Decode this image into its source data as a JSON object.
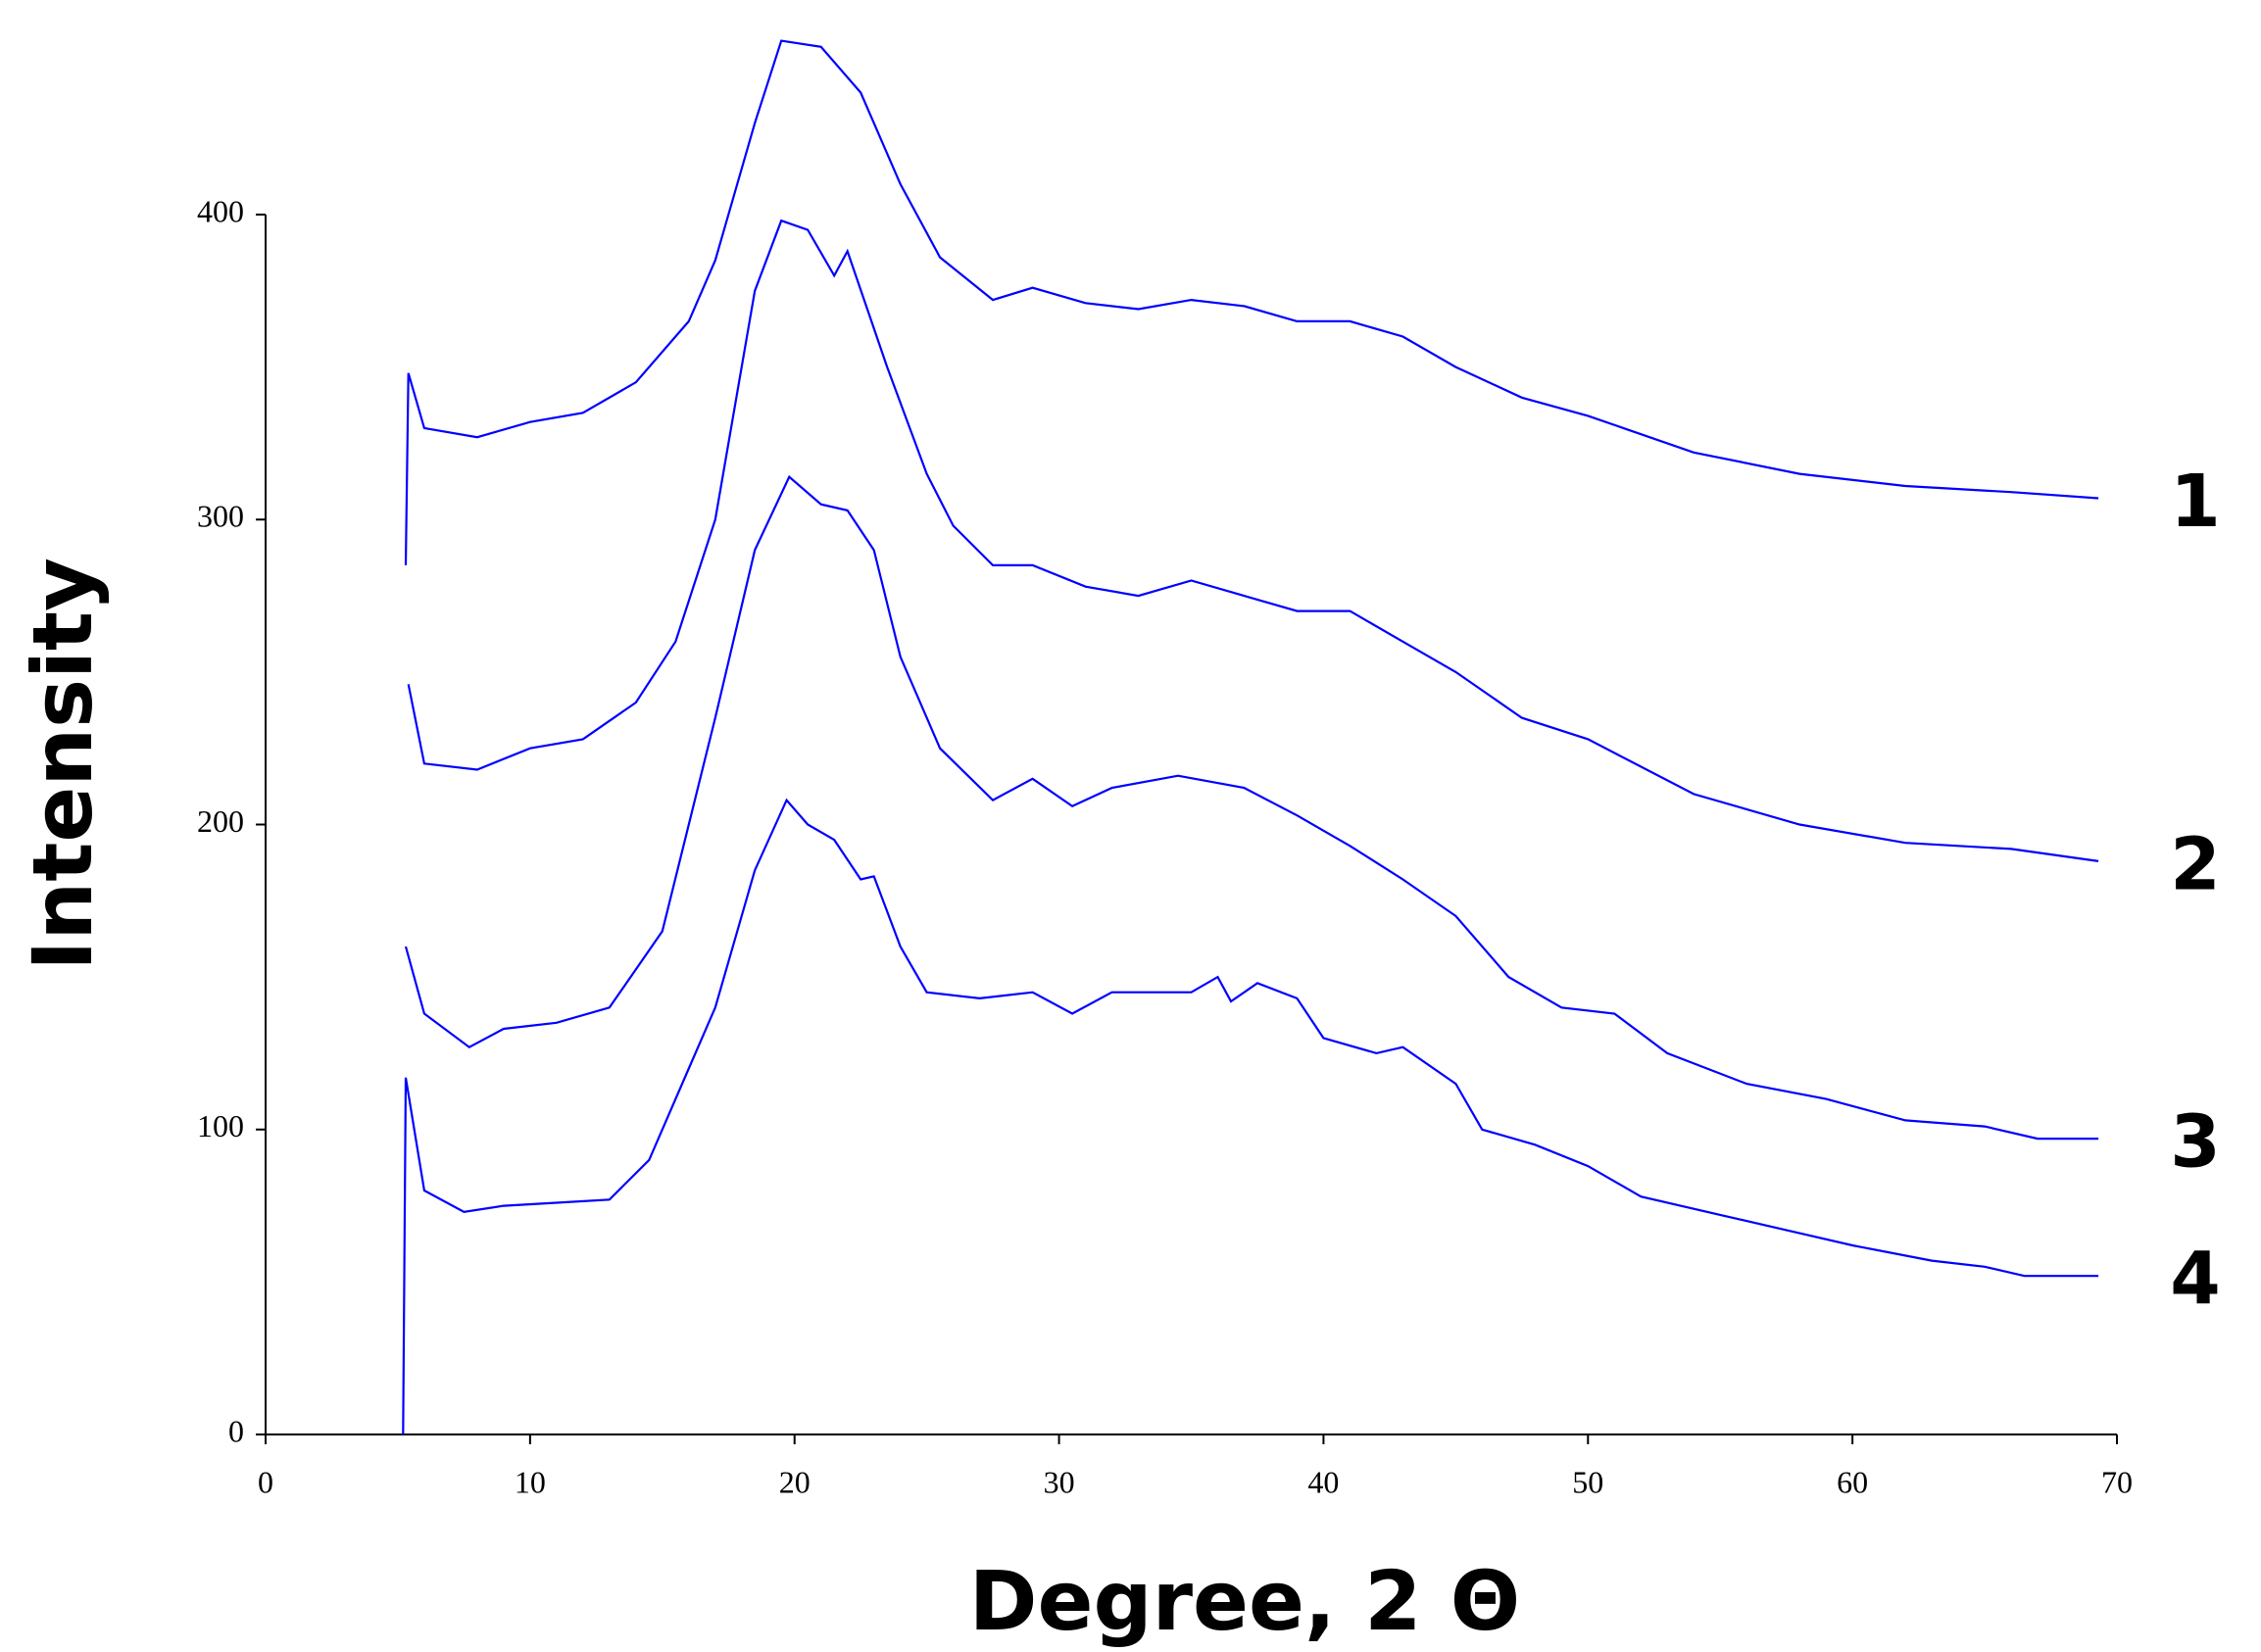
{
  "chart_data": {
    "type": "line",
    "x_label": "Degree, 2 Θ",
    "y_label": "Intensity",
    "xlim": [
      0,
      70
    ],
    "ylim": [
      0,
      400
    ],
    "xticks": [
      0,
      10,
      20,
      30,
      40,
      50,
      60,
      70
    ],
    "yticks": [
      0,
      100,
      200,
      300,
      400
    ],
    "grid": false,
    "series": [
      {
        "name": "1",
        "color": "#0000ff",
        "x": [
          5.3,
          5.4,
          6,
          8,
          10,
          12,
          14,
          16,
          17,
          18.5,
          19.5,
          21,
          22.5,
          24,
          25.5,
          27.5,
          29,
          31,
          33,
          35,
          37,
          39,
          41,
          43,
          45,
          47.5,
          50,
          54,
          58,
          62,
          66,
          69.3
        ],
        "values": [
          285,
          348,
          330,
          327,
          332,
          335,
          345,
          365,
          385,
          430,
          457,
          455,
          440,
          410,
          386,
          372,
          376,
          371,
          369,
          372,
          370,
          365,
          365,
          360,
          350,
          340,
          334,
          322,
          315,
          311,
          309,
          307
        ]
      },
      {
        "name": "2",
        "color": "#0000ff",
        "x": [
          5.4,
          6,
          8,
          10,
          12,
          14,
          15.5,
          17,
          18.5,
          19.5,
          20.5,
          21.5,
          22,
          23.5,
          25,
          26,
          27.5,
          29,
          31,
          33,
          35,
          37,
          39,
          41,
          43,
          45,
          47.5,
          50,
          54,
          58,
          62,
          66,
          69.3
        ],
        "values": [
          246,
          220,
          218,
          225,
          228,
          240,
          260,
          300,
          375,
          398,
          395,
          380,
          388,
          350,
          315,
          298,
          285,
          285,
          278,
          275,
          280,
          275,
          270,
          270,
          260,
          250,
          235,
          228,
          210,
          200,
          194,
          192,
          188
        ]
      },
      {
        "name": "3",
        "color": "#0000ff",
        "x": [
          5.3,
          6,
          7.7,
          9,
          11,
          13,
          15,
          17,
          18.5,
          19.8,
          21,
          22,
          23,
          24,
          25.5,
          27.5,
          29,
          30.5,
          32,
          34.5,
          37,
          39,
          41,
          43,
          45,
          47,
          49,
          51,
          53,
          56,
          59,
          62,
          65,
          67,
          69.3
        ],
        "values": [
          160,
          138,
          127,
          133,
          135,
          140,
          165,
          235,
          290,
          314,
          305,
          303,
          290,
          255,
          225,
          208,
          215,
          206,
          212,
          216,
          212,
          203,
          193,
          182,
          170,
          150,
          140,
          138,
          125,
          115,
          110,
          103,
          101,
          97,
          97
        ]
      },
      {
        "name": "4",
        "color": "#0000ff",
        "x": [
          5.2,
          5.3,
          6,
          7.5,
          9,
          11,
          13,
          14.5,
          16,
          17,
          18.5,
          19.7,
          20.5,
          21.5,
          22.5,
          23,
          24,
          25,
          27,
          29,
          30.5,
          32,
          35,
          36,
          36.5,
          37.5,
          39,
          40,
          42,
          43,
          45,
          46,
          48,
          50,
          52,
          55,
          58,
          60,
          63,
          65,
          66.5,
          69.3
        ],
        "values": [
          0,
          117,
          80,
          73,
          75,
          76,
          77,
          90,
          120,
          140,
          185,
          208,
          200,
          195,
          182,
          183,
          160,
          145,
          143,
          145,
          138,
          145,
          145,
          150,
          142,
          148,
          143,
          130,
          125,
          127,
          115,
          100,
          95,
          88,
          78,
          72,
          66,
          62,
          57,
          55,
          52,
          52
        ]
      }
    ]
  }
}
